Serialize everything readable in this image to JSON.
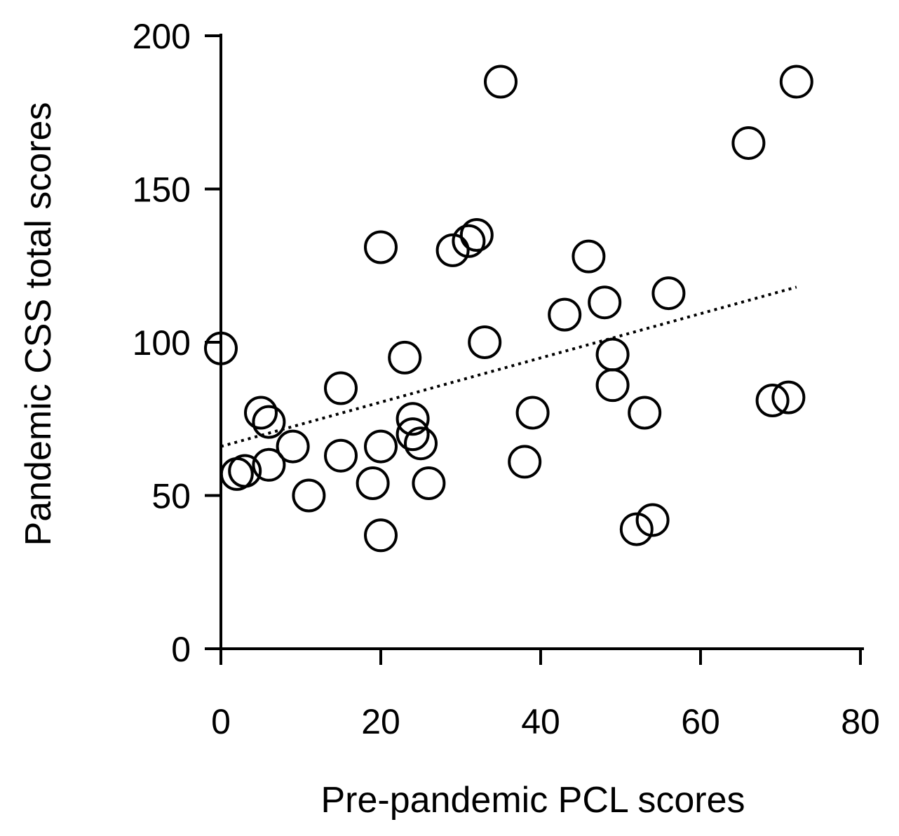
{
  "chart_data": {
    "type": "scatter",
    "title": "",
    "xlabel": "Pre-pandemic PCL scores",
    "ylabel": "Pandemic CSS total scores",
    "xlim": [
      0,
      80
    ],
    "ylim": [
      0,
      200
    ],
    "xticks": [
      0,
      20,
      40,
      60,
      80
    ],
    "yticks": [
      0,
      50,
      100,
      150,
      200
    ],
    "xtick_labels": [
      "0",
      "20",
      "40",
      "60",
      "80"
    ],
    "ytick_labels": [
      "0",
      "50",
      "100",
      "150",
      "200"
    ],
    "marker": "open-circle",
    "series": [
      {
        "name": "participants",
        "points": [
          {
            "x": 0,
            "y": 98
          },
          {
            "x": 2,
            "y": 57
          },
          {
            "x": 3,
            "y": 58
          },
          {
            "x": 5,
            "y": 77
          },
          {
            "x": 6,
            "y": 74
          },
          {
            "x": 6,
            "y": 60
          },
          {
            "x": 9,
            "y": 66
          },
          {
            "x": 11,
            "y": 50
          },
          {
            "x": 15,
            "y": 85
          },
          {
            "x": 15,
            "y": 63
          },
          {
            "x": 19,
            "y": 54
          },
          {
            "x": 20,
            "y": 131
          },
          {
            "x": 20,
            "y": 66
          },
          {
            "x": 20,
            "y": 37
          },
          {
            "x": 23,
            "y": 95
          },
          {
            "x": 24,
            "y": 75
          },
          {
            "x": 24,
            "y": 70
          },
          {
            "x": 25,
            "y": 67
          },
          {
            "x": 26,
            "y": 54
          },
          {
            "x": 29,
            "y": 130
          },
          {
            "x": 31,
            "y": 133
          },
          {
            "x": 32,
            "y": 135
          },
          {
            "x": 33,
            "y": 100
          },
          {
            "x": 35,
            "y": 185
          },
          {
            "x": 38,
            "y": 61
          },
          {
            "x": 39,
            "y": 77
          },
          {
            "x": 43,
            "y": 109
          },
          {
            "x": 46,
            "y": 128
          },
          {
            "x": 48,
            "y": 113
          },
          {
            "x": 49,
            "y": 96
          },
          {
            "x": 49,
            "y": 86
          },
          {
            "x": 52,
            "y": 39
          },
          {
            "x": 53,
            "y": 77
          },
          {
            "x": 54,
            "y": 42
          },
          {
            "x": 56,
            "y": 116
          },
          {
            "x": 66,
            "y": 165
          },
          {
            "x": 69,
            "y": 81
          },
          {
            "x": 71,
            "y": 82
          },
          {
            "x": 72,
            "y": 185
          }
        ]
      }
    ],
    "trendline": {
      "style": "dotted",
      "x_start": 0,
      "y_start": 66,
      "x_end": 72,
      "y_end": 118
    }
  }
}
